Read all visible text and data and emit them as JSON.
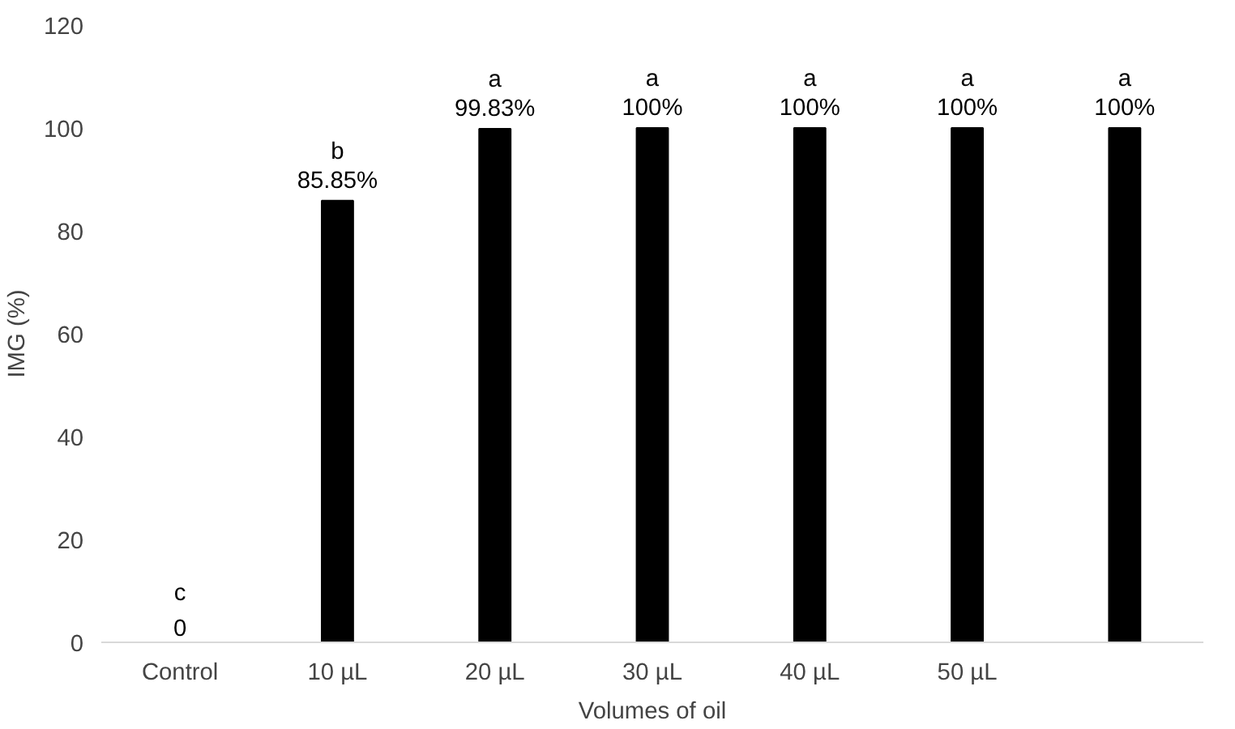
{
  "chart_data": {
    "type": "bar",
    "xlabel": "Volumes of oil",
    "ylabel": "IMG (%)",
    "categories": [
      "Control",
      "10 µL",
      "20 µL",
      "30 µL",
      "40 µL",
      "50 µL",
      null
    ],
    "values": [
      0,
      85.85,
      99.83,
      100,
      100,
      100,
      100
    ],
    "color": "#000000",
    "value_labels": [
      "c\n0",
      "b\n85.85%",
      "a\n99.83%",
      "a\n100%",
      "a\n100%",
      "a\n100%",
      "a\n100%"
    ],
    "ylim": [
      0,
      120
    ],
    "yticks": [
      0,
      20,
      40,
      60,
      80,
      100,
      120
    ],
    "grid": false
  }
}
